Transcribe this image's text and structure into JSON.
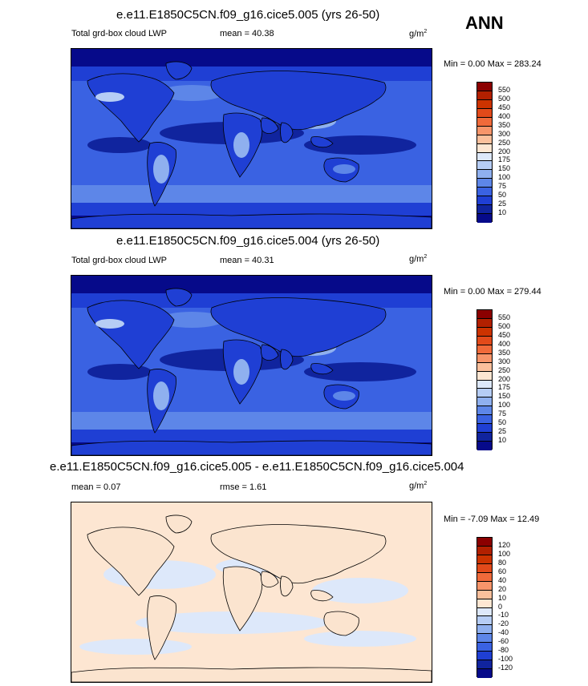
{
  "season": "ANN",
  "panels": [
    {
      "title": "e.e11.E1850C5CN.f09_g16.cice5.005 (yrs 26-50)",
      "left_label": "Total grd-box cloud LWP",
      "mid_label": "mean =  40.38",
      "units": "g/m",
      "units_sup": "2",
      "minmax": "Min =   0.00 Max = 283.24",
      "legend_type": "abs"
    },
    {
      "title": "e.e11.E1850C5CN.f09_g16.cice5.004 (yrs 26-50)",
      "left_label": "Total grd-box cloud LWP",
      "mid_label": "mean =  40.31",
      "units": "g/m",
      "units_sup": "2",
      "minmax": "Min =   0.00 Max = 279.44",
      "legend_type": "abs"
    },
    {
      "title": "e.e11.E1850C5CN.f09_g16.cice5.005 - e.e11.E1850C5CN.f09_g16.cice5.004",
      "left_label": "mean =   0.07",
      "mid_label": "rmse =   1.61",
      "units": "g/m",
      "units_sup": "2",
      "minmax": "Min =  -7.09 Max =  12.49",
      "legend_type": "diff"
    }
  ],
  "legends": {
    "abs": {
      "labels": [
        "550",
        "500",
        "450",
        "400",
        "350",
        "300",
        "250",
        "200",
        "175",
        "150",
        "100",
        "75",
        "50",
        "25",
        "10"
      ],
      "colors": [
        "#8b0000",
        "#b22000",
        "#cc3300",
        "#e24a1a",
        "#f06a3a",
        "#f7956a",
        "#fbc09c",
        "#fde6d2",
        "#dde8fa",
        "#b6cdf5",
        "#8fb0ef",
        "#5d86e8",
        "#3a62e2",
        "#1f3fd4",
        "#10249e",
        "#060a8a"
      ]
    },
    "diff": {
      "labels": [
        "120",
        "100",
        "80",
        "60",
        "40",
        "20",
        "10",
        "0",
        "-10",
        "-20",
        "-40",
        "-60",
        "-80",
        "-100",
        "-120"
      ],
      "colors": [
        "#8b0000",
        "#b22000",
        "#cc3300",
        "#e24a1a",
        "#f06a3a",
        "#f7956a",
        "#fbc09c",
        "#fde6d2",
        "#dde8fa",
        "#b6cdf5",
        "#8fb0ef",
        "#5d86e8",
        "#3a62e2",
        "#1f3fd4",
        "#10249e",
        "#060a8a"
      ]
    }
  },
  "map_colors": {
    "deep": "#060a8a",
    "dark": "#10249e",
    "mid": "#1f3fd4",
    "light": "#3a62e2",
    "pale": "#5d86e8",
    "paler": "#8fb0ef",
    "lightest": "#b6cdf5",
    "whiteish": "#dde8fa",
    "peach": "#fde6d2",
    "peach2": "#fbe4cf",
    "coast": "#000000"
  }
}
